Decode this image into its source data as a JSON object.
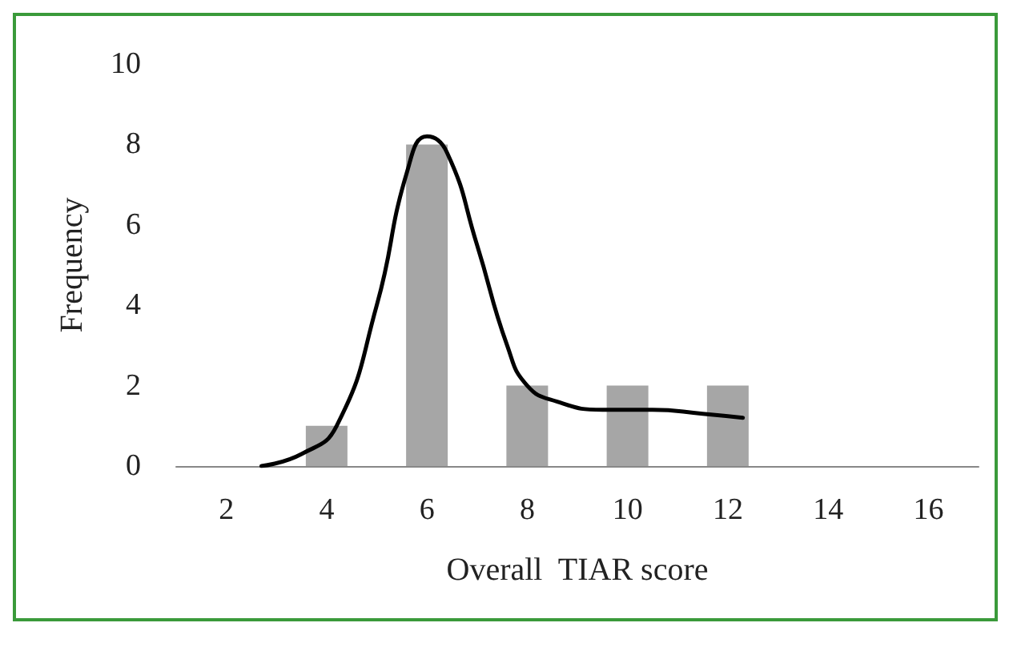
{
  "chart_data": {
    "type": "bar",
    "xlabel": "Overall  TIAR score",
    "ylabel": "Frequency",
    "x": [
      2,
      4,
      6,
      8,
      10,
      12,
      14,
      16
    ],
    "xlim": [
      1,
      17
    ],
    "xticks": [
      2,
      4,
      6,
      8,
      10,
      12,
      14,
      16
    ],
    "ylim": [
      0,
      10
    ],
    "yticks": [
      0,
      2,
      4,
      6,
      8,
      10
    ],
    "grid": false,
    "series": [
      {
        "color": "#a6a6a6",
        "values": [
          0,
          1,
          8,
          2,
          2,
          2,
          0,
          0
        ]
      },
      {
        "type": "line",
        "color": "#000000",
        "marker": "none",
        "x": [
          2.7,
          3.5,
          4.2,
          5,
          5.6,
          6,
          6.4,
          7,
          7.6,
          8,
          8.6,
          9.5,
          10.5,
          11.5,
          12.3
        ],
        "values": [
          0,
          0.3,
          1,
          4,
          7.3,
          8.2,
          7.8,
          5.5,
          3,
          2,
          1.6,
          1.4,
          1.4,
          1.3,
          1.2
        ]
      }
    ]
  }
}
